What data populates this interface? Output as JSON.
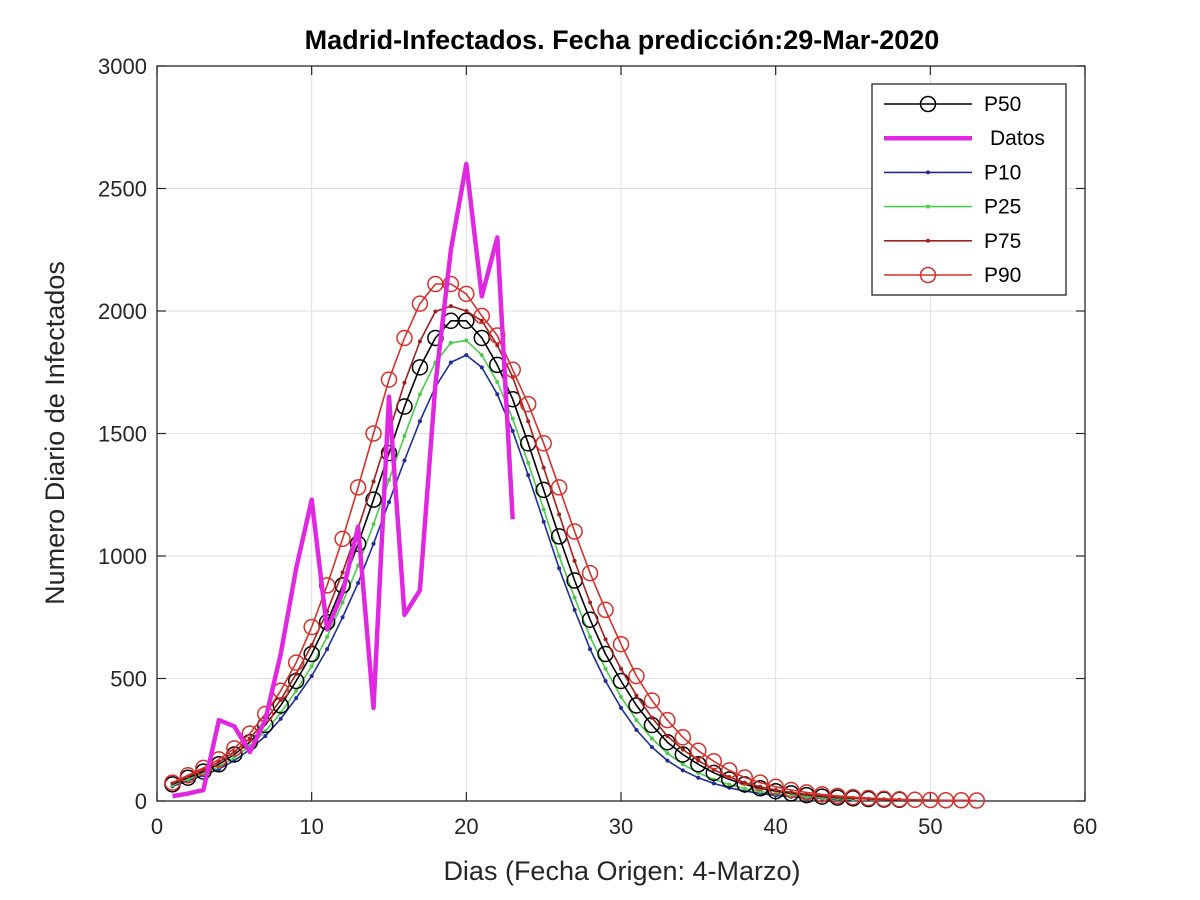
{
  "chart_data": {
    "type": "line",
    "title": "Madrid-Infectados. Fecha predicción:29-Mar-2020",
    "xlabel": "Dias (Fecha Origen: 4-Marzo)",
    "ylabel": "Numero Diario de Infectados",
    "xlim": [
      0,
      60
    ],
    "ylim": [
      0,
      3000
    ],
    "xticks": [
      0,
      10,
      20,
      30,
      40,
      50,
      60
    ],
    "yticks": [
      0,
      500,
      1000,
      1500,
      2000,
      2500,
      3000
    ],
    "grid": true,
    "legend_position": "top-right",
    "model": {
      "x": [
        1,
        2,
        3,
        4,
        5,
        6,
        7,
        8,
        9,
        10,
        11,
        12,
        13,
        14,
        15,
        16,
        17,
        18,
        19,
        20,
        21,
        22,
        23,
        24,
        25,
        26,
        27,
        28,
        29,
        30,
        31,
        32,
        33,
        34,
        35,
        36,
        37,
        38,
        39,
        40,
        41,
        42,
        43,
        44,
        45,
        46,
        47,
        48,
        49,
        50,
        51,
        52,
        53
      ]
    },
    "series": [
      {
        "name": "P50",
        "color": "#000000",
        "marker": "circle",
        "x_max": 48,
        "values": [
          68,
          95,
          120,
          150,
          190,
          240,
          310,
          390,
          490,
          600,
          730,
          880,
          1050,
          1230,
          1420,
          1610,
          1770,
          1890,
          1960,
          1960,
          1890,
          1780,
          1640,
          1460,
          1270,
          1080,
          900,
          740,
          600,
          490,
          390,
          310,
          240,
          190,
          150,
          115,
          88,
          68,
          52,
          40,
          31,
          24,
          18,
          14,
          11,
          8,
          6,
          5
        ]
      },
      {
        "name": "P10",
        "color": "#1f2d9c",
        "marker": "dot",
        "x_max": 45,
        "values": [
          60,
          82,
          105,
          130,
          165,
          210,
          265,
          335,
          420,
          510,
          620,
          750,
          890,
          1050,
          1220,
          1390,
          1550,
          1690,
          1790,
          1820,
          1770,
          1660,
          1510,
          1330,
          1140,
          950,
          780,
          620,
          490,
          380,
          290,
          220,
          165,
          125,
          95,
          72,
          54,
          41,
          31,
          23,
          17,
          13,
          10,
          7,
          5
        ]
      },
      {
        "name": "P25",
        "color": "#4ccb4c",
        "marker": "dot",
        "x_max": 45,
        "values": [
          64,
          88,
          112,
          140,
          177,
          224,
          285,
          360,
          450,
          550,
          670,
          810,
          960,
          1130,
          1310,
          1490,
          1660,
          1790,
          1870,
          1880,
          1820,
          1710,
          1560,
          1380,
          1190,
          1000,
          830,
          670,
          540,
          425,
          330,
          255,
          195,
          150,
          115,
          88,
          67,
          51,
          38,
          29,
          22,
          17,
          13,
          10,
          7
        ]
      },
      {
        "name": "P75",
        "color": "#a0201e",
        "marker": "dot",
        "x_max": 48,
        "values": [
          72,
          100,
          127,
          159,
          201,
          255,
          328,
          413,
          519,
          636,
          774,
          933,
          1113,
          1304,
          1505,
          1707,
          1876,
          1998,
          2020,
          2000,
          1960,
          1860,
          1730,
          1550,
          1360,
          1170,
          980,
          810,
          660,
          540,
          430,
          340,
          265,
          210,
          165,
          128,
          98,
          75,
          58,
          45,
          35,
          27,
          21,
          16,
          12,
          9,
          7,
          5
        ]
      },
      {
        "name": "P90",
        "color": "#d8302a",
        "marker": "circle",
        "x_max": 53,
        "values": [
          75,
          105,
          135,
          170,
          215,
          275,
          355,
          450,
          565,
          710,
          880,
          1070,
          1280,
          1500,
          1720,
          1890,
          2030,
          2110,
          2110,
          2070,
          1980,
          1900,
          1760,
          1620,
          1460,
          1280,
          1100,
          930,
          780,
          640,
          510,
          410,
          330,
          260,
          205,
          162,
          125,
          96,
          75,
          58,
          45,
          35,
          27,
          21,
          16,
          12,
          9,
          7,
          5,
          4,
          3,
          3,
          2
        ]
      },
      {
        "name": "Datos",
        "color": "#e128e1",
        "marker": "none",
        "x": [
          1,
          2,
          3,
          4,
          5,
          6,
          7,
          8,
          9,
          10,
          11,
          12,
          13,
          14,
          15,
          16,
          17,
          18,
          19,
          20,
          21,
          22,
          23
        ],
        "values": [
          20,
          30,
          45,
          330,
          305,
          200,
          330,
          600,
          950,
          1230,
          700,
          850,
          1120,
          380,
          1650,
          760,
          860,
          1700,
          2250,
          2600,
          2060,
          2300,
          1150
        ]
      }
    ],
    "legend_order": [
      "P50",
      "Datos",
      "P10",
      "P25",
      "P75",
      "P90"
    ]
  }
}
